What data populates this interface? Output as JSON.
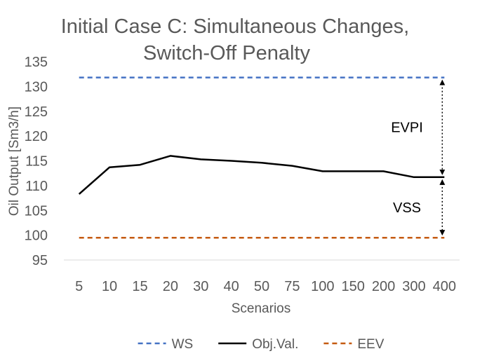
{
  "chart_data": {
    "type": "line",
    "title": "Initial Case C: Simultaneous Changes,",
    "subtitle": "Switch-Off Penalty",
    "xlabel": "Scenarios",
    "ylabel": "Oil Output [Sm3/h]",
    "categories": [
      "5",
      "10",
      "15",
      "20",
      "30",
      "40",
      "50",
      "75",
      "100",
      "150",
      "200",
      "300",
      "400"
    ],
    "ylim": [
      95,
      135
    ],
    "yticks": [
      95,
      100,
      105,
      110,
      115,
      120,
      125,
      130,
      135
    ],
    "grid": false,
    "legend_position": "bottom",
    "series": [
      {
        "name": "WS",
        "color": "#4472C4",
        "dash": "dashed",
        "values": [
          131.8,
          131.8,
          131.8,
          131.8,
          131.8,
          131.8,
          131.8,
          131.8,
          131.8,
          131.8,
          131.8,
          131.8,
          131.8
        ]
      },
      {
        "name": "Obj.Val.",
        "color": "#000000",
        "dash": "solid",
        "values": [
          108.3,
          113.7,
          114.2,
          116.0,
          115.3,
          115.0,
          114.6,
          114.0,
          112.9,
          112.9,
          112.9,
          111.7,
          111.7
        ]
      },
      {
        "name": "EEV",
        "color": "#C55A11",
        "dash": "dashed",
        "values": [
          99.5,
          99.5,
          99.5,
          99.5,
          99.5,
          99.5,
          99.5,
          99.5,
          99.5,
          99.5,
          99.5,
          99.5,
          99.5
        ]
      }
    ],
    "annotations": [
      {
        "text": "EVPI",
        "from": 131.8,
        "to": 111.7
      },
      {
        "text": "VSS",
        "from": 111.7,
        "to": 99.5
      }
    ]
  }
}
